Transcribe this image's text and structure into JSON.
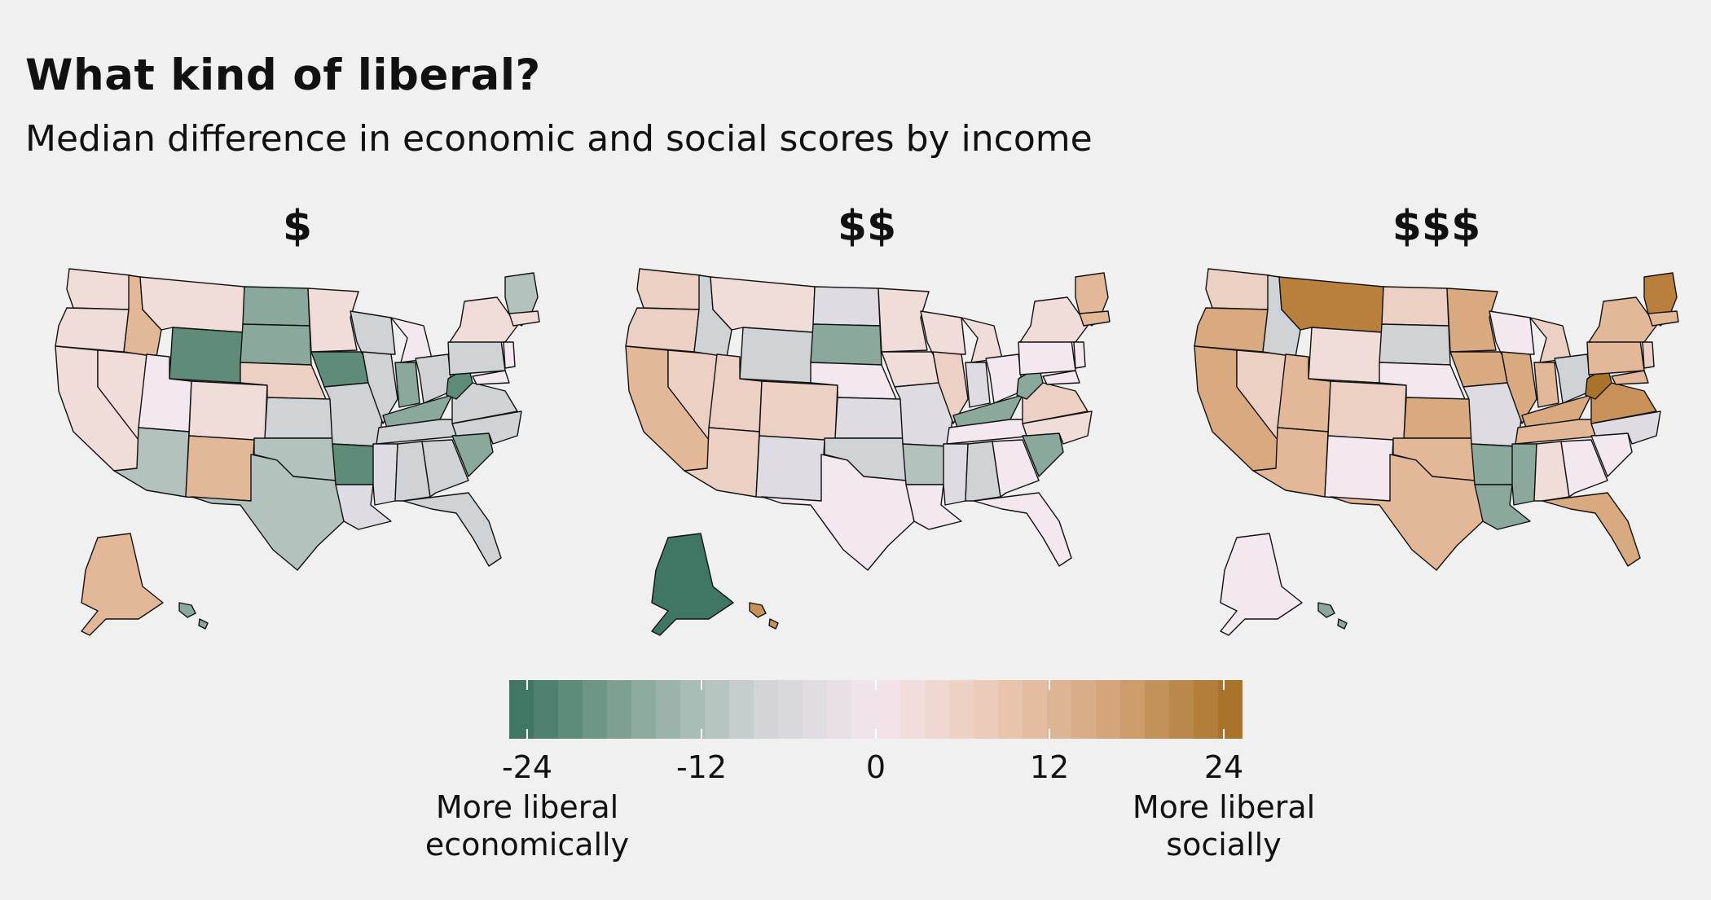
{
  "header": {
    "title": "What kind of liberal?",
    "subtitle": "Median difference in economic and social scores by income"
  },
  "panels": [
    {
      "label": "$"
    },
    {
      "label": "$$"
    },
    {
      "label": "$$$"
    }
  ],
  "legend": {
    "ticks": [
      "-24",
      "-12",
      "0",
      "12",
      "24"
    ],
    "low_label_line1": "More liberal",
    "low_label_line2": "economically",
    "high_label_line1": "More liberal",
    "high_label_line2": "socially",
    "colors": [
      "#3f7764",
      "#8aa99c",
      "#cfd3d5",
      "#f4e6ee",
      "#ecc9b6",
      "#d3a478",
      "#a9742a"
    ],
    "min": -24,
    "max": 24
  },
  "colors": {
    "background": "#f0f0f0",
    "border": "#111111"
  }
}
